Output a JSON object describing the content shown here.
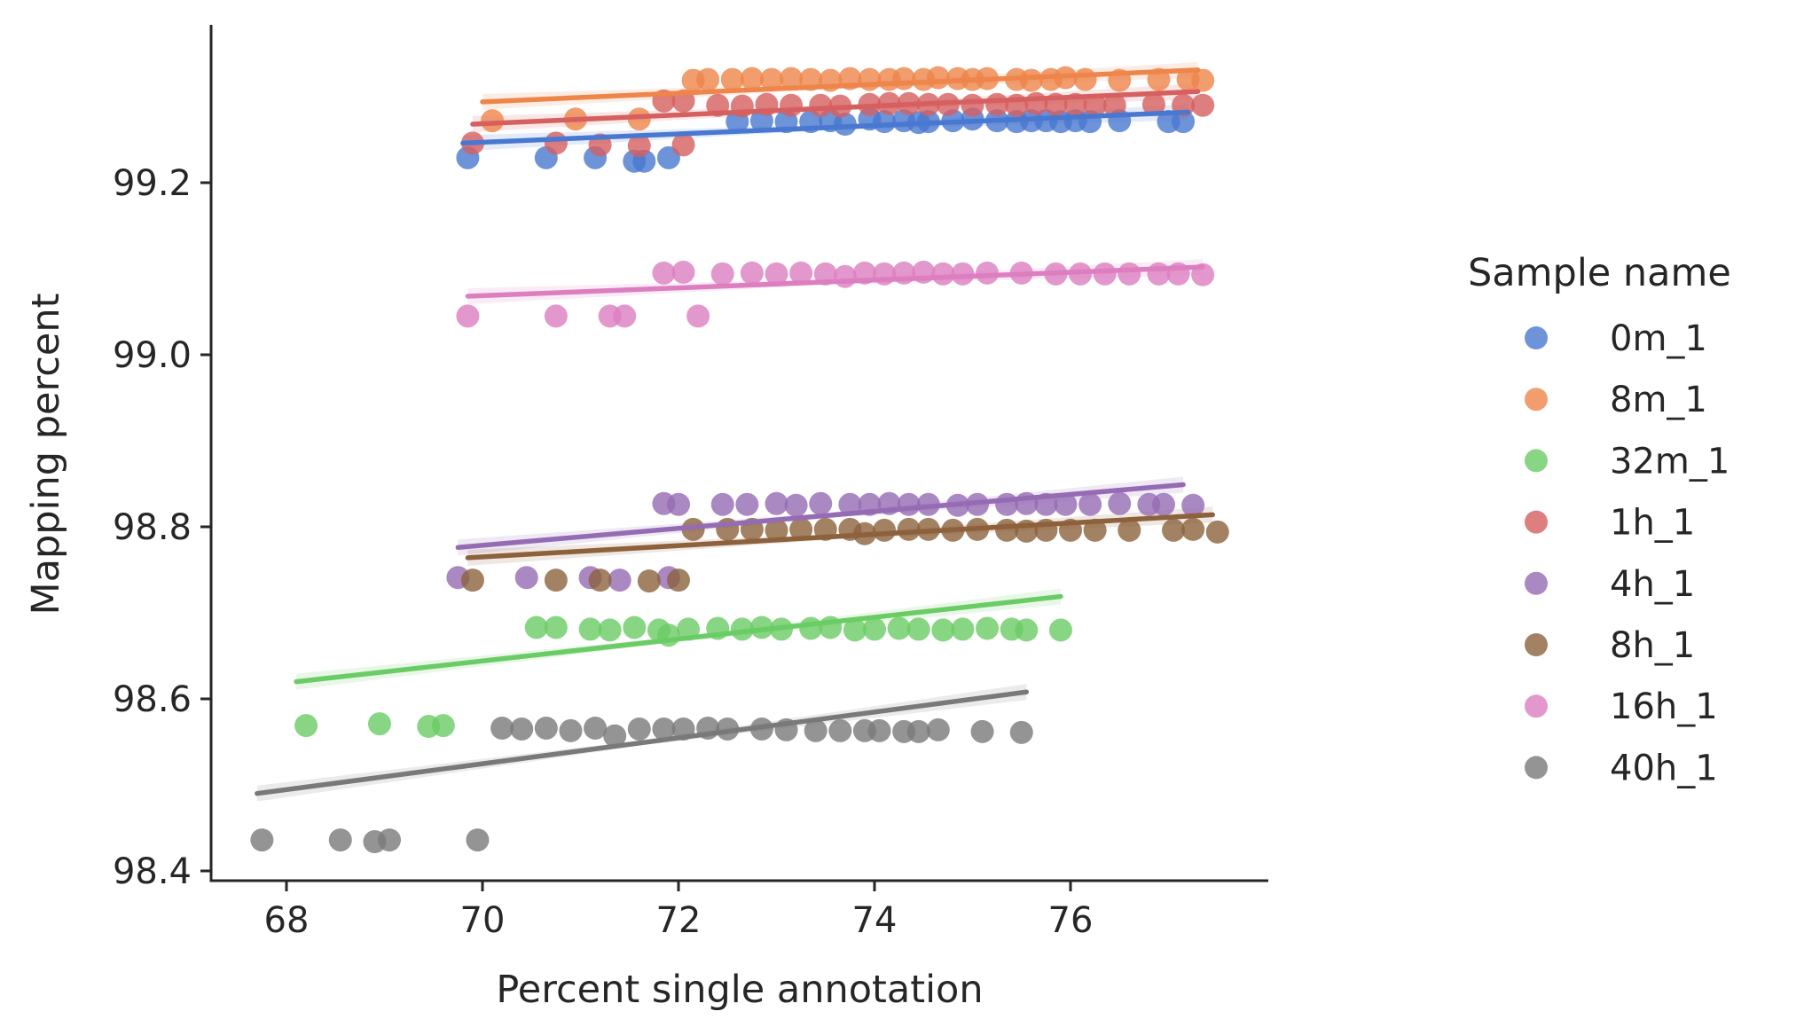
{
  "chart_data": {
    "type": "scatter",
    "title": "",
    "xlabel": "Percent single annotation",
    "ylabel": "Mapping percent",
    "xlim": [
      67.3,
      78.0
    ],
    "ylim": [
      98.38,
      99.37
    ],
    "xticks": [
      68,
      70,
      72,
      74,
      76
    ],
    "yticks": [
      98.4,
      98.6,
      98.8,
      99.0,
      99.2
    ],
    "xtick_labels": [
      "68",
      "70",
      "72",
      "74",
      "76"
    ],
    "ytick_labels": [
      "98.4",
      "98.6",
      "98.8",
      "99.0",
      "99.2"
    ],
    "grid": false,
    "legend": {
      "title": "Sample name",
      "placement": "right"
    },
    "series": [
      {
        "name": "0m_1",
        "color": "#4878d0",
        "fit": {
          "x": [
            69.8,
            77.2
          ],
          "y": [
            99.246,
            99.282
          ]
        },
        "points": [
          [
            69.85,
            99.229
          ],
          [
            70.65,
            99.229
          ],
          [
            71.15,
            99.229
          ],
          [
            71.55,
            99.225
          ],
          [
            71.65,
            99.225
          ],
          [
            71.9,
            99.229
          ],
          [
            72.6,
            99.271
          ],
          [
            72.85,
            99.272
          ],
          [
            73.1,
            99.271
          ],
          [
            73.35,
            99.271
          ],
          [
            73.55,
            99.272
          ],
          [
            73.7,
            99.268
          ],
          [
            73.95,
            99.274
          ],
          [
            74.1,
            99.271
          ],
          [
            74.3,
            99.272
          ],
          [
            74.45,
            99.27
          ],
          [
            74.55,
            99.271
          ],
          [
            74.8,
            99.272
          ],
          [
            75.0,
            99.274
          ],
          [
            75.25,
            99.272
          ],
          [
            75.45,
            99.271
          ],
          [
            75.6,
            99.272
          ],
          [
            75.75,
            99.272
          ],
          [
            75.9,
            99.271
          ],
          [
            76.05,
            99.272
          ],
          [
            76.2,
            99.271
          ],
          [
            76.5,
            99.272
          ],
          [
            77.0,
            99.271
          ],
          [
            77.15,
            99.271
          ]
        ]
      },
      {
        "name": "8m_1",
        "color": "#ee854a",
        "fit": {
          "x": [
            70.0,
            77.3
          ],
          "y": [
            99.294,
            99.331
          ]
        },
        "points": [
          [
            70.1,
            99.272
          ],
          [
            70.95,
            99.274
          ],
          [
            71.6,
            99.274
          ],
          [
            72.15,
            99.319
          ],
          [
            72.3,
            99.32
          ],
          [
            72.55,
            99.32
          ],
          [
            72.75,
            99.321
          ],
          [
            72.95,
            99.32
          ],
          [
            73.15,
            99.321
          ],
          [
            73.35,
            99.32
          ],
          [
            73.55,
            99.319
          ],
          [
            73.75,
            99.321
          ],
          [
            73.95,
            99.32
          ],
          [
            74.15,
            99.32
          ],
          [
            74.3,
            99.321
          ],
          [
            74.5,
            99.32
          ],
          [
            74.65,
            99.322
          ],
          [
            74.85,
            99.321
          ],
          [
            75.0,
            99.32
          ],
          [
            75.15,
            99.321
          ],
          [
            75.45,
            99.32
          ],
          [
            75.6,
            99.319
          ],
          [
            75.8,
            99.32
          ],
          [
            75.95,
            99.322
          ],
          [
            76.15,
            99.32
          ],
          [
            76.5,
            99.319
          ],
          [
            76.9,
            99.32
          ],
          [
            77.2,
            99.32
          ],
          [
            77.35,
            99.319
          ]
        ]
      },
      {
        "name": "32m_1",
        "color": "#6acc64",
        "fit": {
          "x": [
            68.1,
            75.9
          ],
          "y": [
            98.62,
            98.719
          ]
        },
        "points": [
          [
            68.2,
            98.569
          ],
          [
            68.95,
            98.571
          ],
          [
            69.45,
            98.568
          ],
          [
            69.6,
            98.569
          ],
          [
            70.55,
            98.683
          ],
          [
            70.75,
            98.683
          ],
          [
            71.1,
            98.681
          ],
          [
            71.3,
            98.68
          ],
          [
            71.55,
            98.683
          ],
          [
            71.8,
            98.68
          ],
          [
            71.9,
            98.674
          ],
          [
            72.1,
            98.681
          ],
          [
            72.4,
            98.682
          ],
          [
            72.65,
            98.681
          ],
          [
            72.85,
            98.683
          ],
          [
            73.05,
            98.681
          ],
          [
            73.35,
            98.682
          ],
          [
            73.55,
            98.683
          ],
          [
            73.8,
            98.68
          ],
          [
            74.0,
            98.681
          ],
          [
            74.25,
            98.682
          ],
          [
            74.45,
            98.681
          ],
          [
            74.7,
            98.68
          ],
          [
            74.9,
            98.681
          ],
          [
            75.15,
            98.682
          ],
          [
            75.4,
            98.681
          ],
          [
            75.55,
            98.68
          ],
          [
            75.9,
            98.68
          ]
        ]
      },
      {
        "name": "1h_1",
        "color": "#d65f5f",
        "fit": {
          "x": [
            69.9,
            77.3
          ],
          "y": [
            99.268,
            99.306
          ]
        },
        "points": [
          [
            69.9,
            99.246
          ],
          [
            70.75,
            99.246
          ],
          [
            71.2,
            99.244
          ],
          [
            71.6,
            99.243
          ],
          [
            72.05,
            99.244
          ],
          [
            71.85,
            99.295
          ],
          [
            72.05,
            99.295
          ],
          [
            72.4,
            99.29
          ],
          [
            72.65,
            99.289
          ],
          [
            72.9,
            99.291
          ],
          [
            73.15,
            99.29
          ],
          [
            73.45,
            99.29
          ],
          [
            73.65,
            99.289
          ],
          [
            73.95,
            99.291
          ],
          [
            74.15,
            99.292
          ],
          [
            74.35,
            99.292
          ],
          [
            74.55,
            99.291
          ],
          [
            74.75,
            99.291
          ],
          [
            75.0,
            99.29
          ],
          [
            75.25,
            99.291
          ],
          [
            75.45,
            99.29
          ],
          [
            75.65,
            99.292
          ],
          [
            75.85,
            99.291
          ],
          [
            76.05,
            99.291
          ],
          [
            76.25,
            99.29
          ],
          [
            76.45,
            99.29
          ],
          [
            76.85,
            99.291
          ],
          [
            77.15,
            99.29
          ],
          [
            77.35,
            99.29
          ]
        ]
      },
      {
        "name": "4h_1",
        "color": "#956cb4",
        "fit": {
          "x": [
            69.75,
            77.15
          ],
          "y": [
            98.776,
            98.849
          ]
        },
        "points": [
          [
            69.75,
            98.741
          ],
          [
            70.45,
            98.741
          ],
          [
            71.1,
            98.741
          ],
          [
            71.4,
            98.738
          ],
          [
            71.9,
            98.741
          ],
          [
            71.85,
            98.827
          ],
          [
            72.0,
            98.826
          ],
          [
            72.45,
            98.826
          ],
          [
            72.7,
            98.826
          ],
          [
            73.0,
            98.827
          ],
          [
            73.2,
            98.825
          ],
          [
            73.45,
            98.827
          ],
          [
            73.75,
            98.826
          ],
          [
            73.95,
            98.826
          ],
          [
            74.15,
            98.827
          ],
          [
            74.35,
            98.826
          ],
          [
            74.55,
            98.826
          ],
          [
            74.85,
            98.825
          ],
          [
            75.05,
            98.826
          ],
          [
            75.35,
            98.826
          ],
          [
            75.55,
            98.827
          ],
          [
            75.75,
            98.826
          ],
          [
            75.95,
            98.826
          ],
          [
            76.2,
            98.826
          ],
          [
            76.5,
            98.827
          ],
          [
            76.8,
            98.826
          ],
          [
            76.95,
            98.826
          ],
          [
            77.25,
            98.825
          ]
        ]
      },
      {
        "name": "8h_1",
        "color": "#8c613c",
        "fit": {
          "x": [
            69.85,
            77.45
          ],
          "y": [
            98.764,
            98.814
          ]
        },
        "points": [
          [
            69.9,
            98.738
          ],
          [
            70.75,
            98.738
          ],
          [
            71.2,
            98.738
          ],
          [
            71.7,
            98.737
          ],
          [
            72.0,
            98.738
          ],
          [
            72.15,
            98.797
          ],
          [
            72.5,
            98.797
          ],
          [
            72.75,
            98.797
          ],
          [
            73.0,
            98.796
          ],
          [
            73.25,
            98.797
          ],
          [
            73.5,
            98.797
          ],
          [
            73.75,
            98.797
          ],
          [
            73.9,
            98.792
          ],
          [
            74.1,
            98.796
          ],
          [
            74.35,
            98.797
          ],
          [
            74.55,
            98.797
          ],
          [
            74.8,
            98.796
          ],
          [
            75.05,
            98.797
          ],
          [
            75.35,
            98.796
          ],
          [
            75.55,
            98.795
          ],
          [
            75.75,
            98.796
          ],
          [
            76.0,
            98.796
          ],
          [
            76.25,
            98.796
          ],
          [
            76.6,
            98.796
          ],
          [
            77.05,
            98.796
          ],
          [
            77.25,
            98.797
          ],
          [
            77.5,
            98.794
          ]
        ]
      },
      {
        "name": "16h_1",
        "color": "#dc7ec0",
        "fit": {
          "x": [
            69.85,
            77.35
          ],
          "y": [
            99.068,
            99.102
          ]
        },
        "points": [
          [
            69.85,
            99.045
          ],
          [
            70.75,
            99.045
          ],
          [
            71.3,
            99.045
          ],
          [
            71.45,
            99.045
          ],
          [
            72.2,
            99.045
          ],
          [
            71.85,
            99.095
          ],
          [
            72.05,
            99.096
          ],
          [
            72.45,
            99.094
          ],
          [
            72.75,
            99.095
          ],
          [
            73.0,
            99.094
          ],
          [
            73.25,
            99.095
          ],
          [
            73.5,
            99.094
          ],
          [
            73.7,
            99.091
          ],
          [
            73.9,
            99.095
          ],
          [
            74.1,
            99.094
          ],
          [
            74.3,
            99.095
          ],
          [
            74.5,
            99.096
          ],
          [
            74.7,
            99.094
          ],
          [
            74.9,
            99.094
          ],
          [
            75.15,
            99.095
          ],
          [
            75.5,
            99.095
          ],
          [
            75.85,
            99.094
          ],
          [
            76.1,
            99.094
          ],
          [
            76.35,
            99.094
          ],
          [
            76.6,
            99.094
          ],
          [
            76.9,
            99.094
          ],
          [
            77.1,
            99.094
          ],
          [
            77.35,
            99.093
          ]
        ]
      },
      {
        "name": "40h_1",
        "color": "#797979",
        "fit": {
          "x": [
            67.7,
            75.55
          ],
          "y": [
            98.49,
            98.608
          ]
        },
        "points": [
          [
            67.75,
            98.436
          ],
          [
            68.55,
            98.436
          ],
          [
            68.9,
            98.434
          ],
          [
            69.05,
            98.436
          ],
          [
            69.95,
            98.436
          ],
          [
            70.2,
            98.566
          ],
          [
            70.4,
            98.565
          ],
          [
            70.65,
            98.566
          ],
          [
            70.9,
            98.563
          ],
          [
            71.15,
            98.566
          ],
          [
            71.35,
            98.557
          ],
          [
            71.6,
            98.565
          ],
          [
            71.85,
            98.565
          ],
          [
            72.05,
            98.565
          ],
          [
            72.3,
            98.566
          ],
          [
            72.5,
            98.565
          ],
          [
            72.85,
            98.565
          ],
          [
            73.1,
            98.564
          ],
          [
            73.4,
            98.563
          ],
          [
            73.65,
            98.563
          ],
          [
            73.9,
            98.563
          ],
          [
            74.05,
            98.563
          ],
          [
            74.3,
            98.562
          ],
          [
            74.45,
            98.562
          ],
          [
            74.65,
            98.564
          ],
          [
            75.1,
            98.562
          ],
          [
            75.5,
            98.561
          ]
        ]
      }
    ]
  }
}
